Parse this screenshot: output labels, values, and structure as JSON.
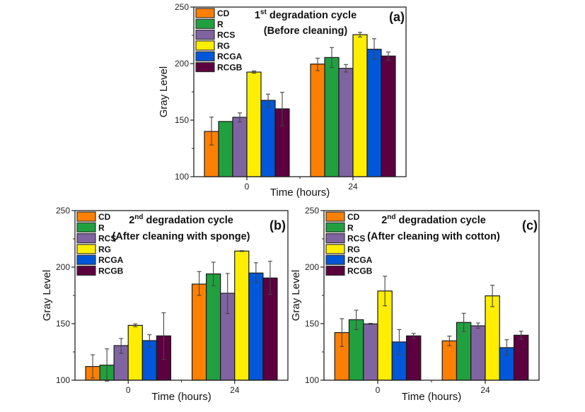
{
  "chart_data": [
    {
      "type": "bar",
      "panel": "(a)",
      "title_line1_prefix": "1",
      "title_line1_sup": "st",
      "title_line1_rest": " degradation cycle",
      "title_line2": "(Before cleaning)",
      "xlabel": "Time (hours)",
      "ylabel": "Gray Level",
      "categories": [
        "0",
        "24"
      ],
      "ylim": [
        100,
        250
      ],
      "yticks": [
        100,
        150,
        200,
        250
      ],
      "legend_position": "top-left",
      "series": [
        {
          "name": "CD",
          "color": "#FF8000",
          "values": [
            140,
            199.6
          ],
          "error_low": [
            128,
            193.8
          ],
          "error_high": [
            152.7,
            204.8
          ]
        },
        {
          "name": "R",
          "color": "#21A040",
          "values": [
            148.8,
            205.4
          ],
          "error_low": [
            148.8,
            196.5
          ],
          "error_high": [
            148.8,
            214.2
          ]
        },
        {
          "name": "RCS",
          "color": "#8064A2",
          "values": [
            152.5,
            195.8
          ],
          "error_low": [
            148.3,
            192.5
          ],
          "error_high": [
            156.4,
            199.2
          ]
        },
        {
          "name": "RG",
          "color": "#FFEE00",
          "values": [
            192.5,
            225.6
          ],
          "error_low": [
            191.5,
            223.5
          ],
          "error_high": [
            193.5,
            227.7
          ]
        },
        {
          "name": "RCGA",
          "color": "#0057D9",
          "values": [
            167.5,
            212.7
          ],
          "error_low": [
            161,
            203.9
          ],
          "error_high": [
            173,
            222
          ]
        },
        {
          "name": "RCGB",
          "color": "#5C0040",
          "values": [
            160,
            206.7
          ],
          "error_low": [
            145,
            203
          ],
          "error_high": [
            174.6,
            210.2
          ]
        }
      ]
    },
    {
      "type": "bar",
      "panel": "(b)",
      "title_line1_prefix": "2",
      "title_line1_sup": "nd",
      "title_line1_rest": " degradation cycle",
      "title_line2": "(After cleaning with sponge)",
      "xlabel": "Time (hours)",
      "ylabel": "Gray Level",
      "categories": [
        "0",
        "24"
      ],
      "ylim": [
        100,
        250
      ],
      "yticks": [
        100,
        150,
        200,
        250
      ],
      "legend_position": "top-left",
      "series": [
        {
          "name": "CD",
          "color": "#FF8000",
          "values": [
            112.1,
            185
          ],
          "error_low": [
            101.9,
            175
          ],
          "error_high": [
            122.5,
            196.1
          ]
        },
        {
          "name": "R",
          "color": "#21A040",
          "values": [
            113.3,
            194
          ],
          "error_low": [
            99.2,
            183.6
          ],
          "error_high": [
            127.7,
            204.4
          ]
        },
        {
          "name": "RCS",
          "color": "#8064A2",
          "values": [
            130.6,
            176.9
          ],
          "error_low": [
            123.8,
            159
          ],
          "error_high": [
            136.9,
            194.4
          ]
        },
        {
          "name": "RG",
          "color": "#FFEE00",
          "values": [
            148.5,
            214.2
          ],
          "error_low": [
            147.3,
            213.8
          ],
          "error_high": [
            149.8,
            214.6
          ]
        },
        {
          "name": "RCGA",
          "color": "#0057D9",
          "values": [
            135,
            194.8
          ],
          "error_low": [
            129.4,
            186.4
          ],
          "error_high": [
            140.2,
            203.9
          ]
        },
        {
          "name": "RCGB",
          "color": "#5C0040",
          "values": [
            139.2,
            190.4
          ],
          "error_low": [
            118.3,
            176
          ],
          "error_high": [
            159.6,
            205.2
          ]
        }
      ]
    },
    {
      "type": "bar",
      "panel": "(c)",
      "title_line1_prefix": "2",
      "title_line1_sup": "nd",
      "title_line1_rest": " degradation cycle",
      "title_line2": "(After cleaning with cotton)",
      "xlabel": "Time (hours)",
      "ylabel": "Gray Level",
      "categories": [
        "0",
        "24"
      ],
      "ylim": [
        100,
        250
      ],
      "yticks": [
        100,
        150,
        200,
        250
      ],
      "legend_position": "top-left",
      "series": [
        {
          "name": "CD",
          "color": "#FF8000",
          "values": [
            142.1,
            134.8
          ],
          "error_low": [
            129.8,
            130.6
          ],
          "error_high": [
            154.4,
            139
          ]
        },
        {
          "name": "R",
          "color": "#21A040",
          "values": [
            153.5,
            151.1
          ],
          "error_low": [
            144.8,
            143.1
          ],
          "error_high": [
            161.9,
            159.2
          ]
        },
        {
          "name": "RCS",
          "color": "#8064A2",
          "values": [
            149.8,
            148.1
          ],
          "error_low": [
            149.3,
            146
          ],
          "error_high": [
            150.3,
            150.6
          ]
        },
        {
          "name": "RG",
          "color": "#FFEE00",
          "values": [
            178.9,
            174.6
          ],
          "error_low": [
            165.8,
            165
          ],
          "error_high": [
            192,
            184
          ]
        },
        {
          "name": "RCGA",
          "color": "#0057D9",
          "values": [
            133.8,
            128.8
          ],
          "error_low": [
            122.7,
            121.9
          ],
          "error_high": [
            144.8,
            135.8
          ]
        },
        {
          "name": "RCGB",
          "color": "#5C0040",
          "values": [
            139.2,
            139.8
          ],
          "error_low": [
            137,
            136.4
          ],
          "error_high": [
            141.4,
            143.3
          ]
        }
      ]
    }
  ]
}
